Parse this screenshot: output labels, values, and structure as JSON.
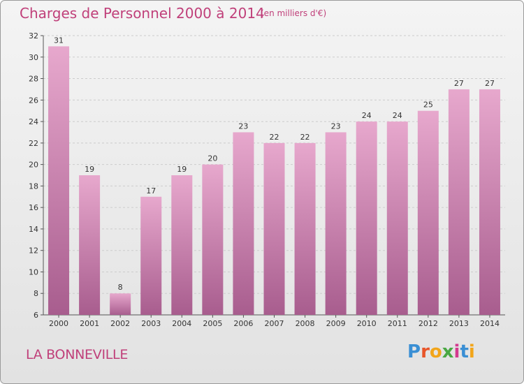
{
  "header": {
    "title": "Charges de Personnel 2000 à 2014",
    "subtitle": "(en milliers d'€)"
  },
  "footer": {
    "commune": "LA BONNEVILLE",
    "logo_letters": [
      "P",
      "r",
      "o",
      "x",
      "i",
      "t",
      "i"
    ],
    "logo_colors": [
      "#3a8fd4",
      "#e8552a",
      "#f2a51a",
      "#49a843",
      "#d43a8f",
      "#3a8fd4",
      "#f2a51a"
    ]
  },
  "colors": {
    "bar_top": "#e7a8cd",
    "bar_bottom": "#a85d8e",
    "text_accent": "#c0407a"
  },
  "chart_data": {
    "type": "bar",
    "categories": [
      "2000",
      "2001",
      "2002",
      "2003",
      "2004",
      "2005",
      "2006",
      "2007",
      "2008",
      "2009",
      "2010",
      "2011",
      "2012",
      "2013",
      "2014"
    ],
    "values": [
      31,
      19,
      8,
      17,
      19,
      20,
      23,
      22,
      22,
      23,
      24,
      24,
      25,
      27,
      27
    ],
    "title": "Charges de Personnel 2000 à 2014",
    "subtitle": "(en milliers d'€)",
    "ylim": [
      6,
      32
    ],
    "yticks": [
      6,
      8,
      10,
      12,
      14,
      16,
      18,
      20,
      22,
      24,
      26,
      28,
      30,
      32
    ],
    "grid": true
  }
}
